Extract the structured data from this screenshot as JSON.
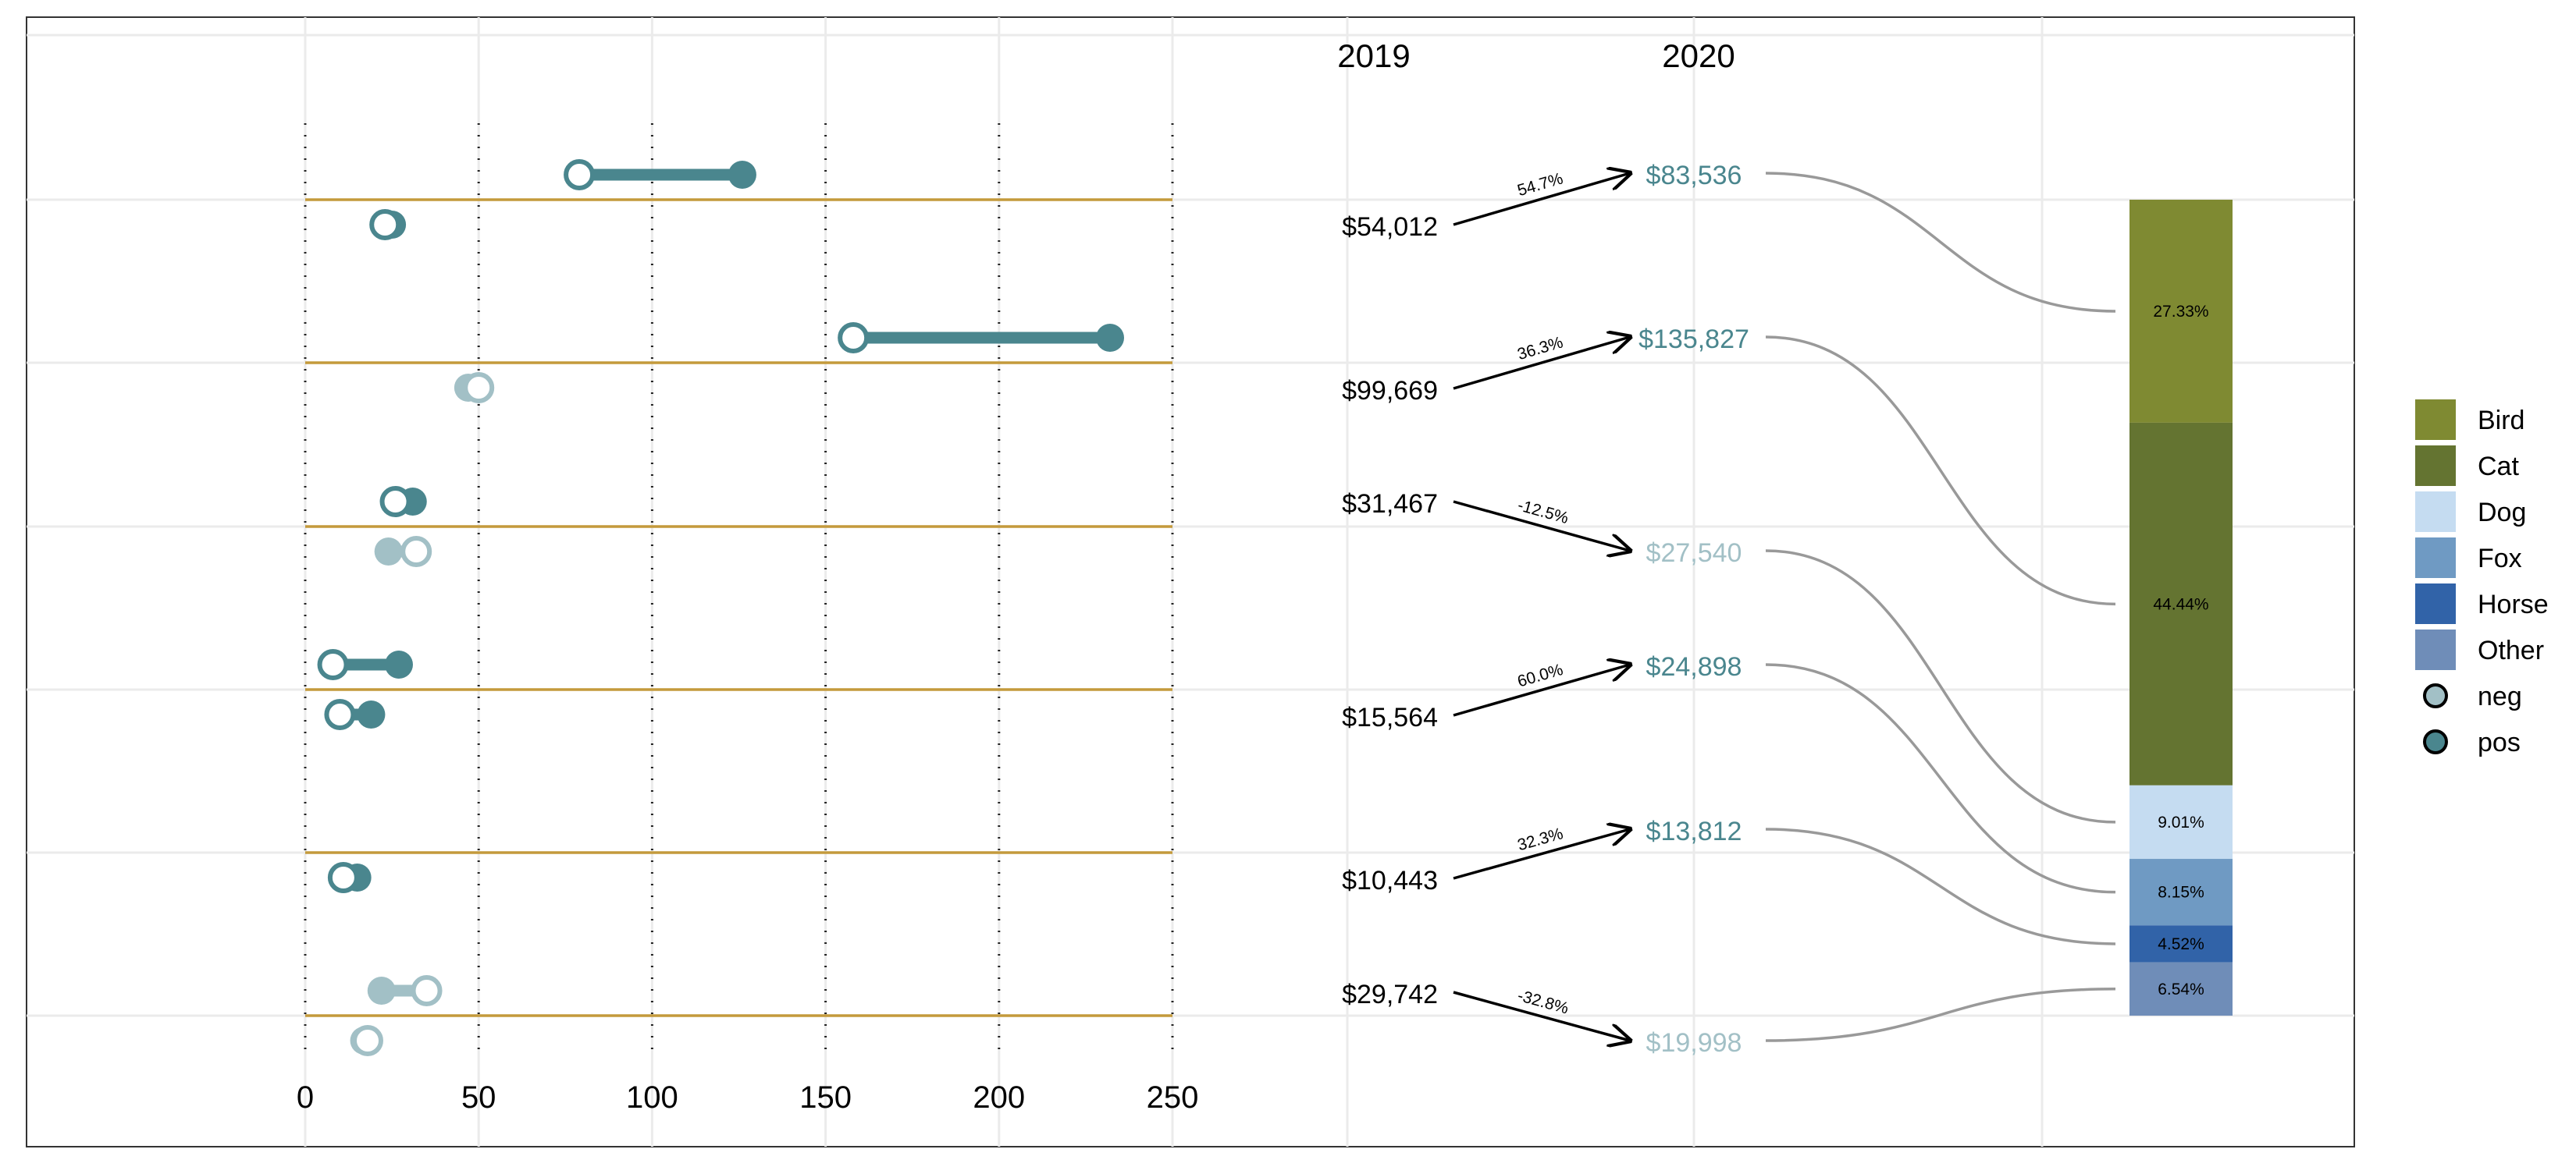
{
  "colors": {
    "pos": "#4A868E",
    "neg": "#A2C0C6",
    "baseline": "#C49A3C",
    "grid": "#EBEBEB",
    "connector": "#999999",
    "arrow": "#000000",
    "bird": "#7F8A32",
    "cat": "#647431",
    "dog": "#C5DCF1",
    "fox": "#6F9AC3",
    "horse": "#3163A8",
    "other": "#6F8DB8"
  },
  "chart_data": {
    "type": "dumbbell",
    "xaxis": {
      "ticks": [
        0,
        50,
        100,
        150,
        200,
        250
      ],
      "range": [
        0,
        250
      ],
      "reference_lines": [
        0,
        50,
        100,
        150,
        200,
        250
      ],
      "reference_style": "dotted"
    },
    "rows": [
      {
        "upper": {
          "from": 79,
          "to": 126,
          "color": "pos",
          "from_fill": "open",
          "to_fill": "filled"
        },
        "lower": {
          "from": 23,
          "to": 25,
          "color": "pos",
          "from_fill": "open",
          "to_fill": "filled"
        },
        "v2019": "$54,012",
        "v2020": "$83,536",
        "change": "54.7%",
        "direction": "up",
        "v2020_color": "pos"
      },
      {
        "upper": {
          "from": 158,
          "to": 232,
          "color": "pos",
          "from_fill": "open",
          "to_fill": "filled"
        },
        "lower": {
          "from": 47,
          "to": 50,
          "color": "neg",
          "from_fill": "filled",
          "to_fill": "open"
        },
        "v2019": "$99,669",
        "v2020": "$135,827",
        "change": "36.3%",
        "direction": "up",
        "v2020_color": "pos"
      },
      {
        "upper": {
          "from": 26,
          "to": 31,
          "color": "pos",
          "from_fill": "open",
          "to_fill": "filled"
        },
        "lower": {
          "from": 24,
          "to": 32,
          "color": "neg",
          "from_fill": "filled",
          "to_fill": "open"
        },
        "v2019": "$31,467",
        "v2020": "$27,540",
        "change": "-12.5%",
        "direction": "down",
        "v2020_color": "neg"
      },
      {
        "upper": {
          "from": 8,
          "to": 27,
          "color": "pos",
          "from_fill": "open",
          "to_fill": "filled"
        },
        "lower": {
          "from": 10,
          "to": 19,
          "color": "pos",
          "from_fill": "open",
          "to_fill": "filled"
        },
        "v2019": "$15,564",
        "v2020": "$24,898",
        "change": "60.0%",
        "direction": "up",
        "v2020_color": "pos"
      },
      {
        "upper": null,
        "lower": {
          "from": 11,
          "to": 15,
          "color": "pos",
          "from_fill": "open",
          "to_fill": "filled"
        },
        "v2019": "$10,443",
        "v2020": "$13,812",
        "change": "32.3%",
        "direction": "up",
        "v2020_color": "pos"
      },
      {
        "upper": {
          "from": 22,
          "to": 35,
          "color": "neg",
          "from_fill": "filled",
          "to_fill": "open"
        },
        "lower": {
          "from": 17,
          "to": 18,
          "color": "neg",
          "from_fill": "filled",
          "to_fill": "open"
        },
        "v2019": "$29,742",
        "v2020": "$19,998",
        "change": "-32.8%",
        "direction": "down",
        "v2020_color": "neg"
      }
    ],
    "years": [
      "2019",
      "2020"
    ],
    "stacked_bar": {
      "segments": [
        {
          "name": "Bird",
          "percent": 27.33,
          "label": "27.33%",
          "color": "bird"
        },
        {
          "name": "Cat",
          "percent": 44.44,
          "label": "44.44%",
          "color": "cat"
        },
        {
          "name": "Dog",
          "percent": 9.01,
          "label": "9.01%",
          "color": "dog"
        },
        {
          "name": "Fox",
          "percent": 8.15,
          "label": "8.15%",
          "color": "fox"
        },
        {
          "name": "Horse",
          "percent": 4.52,
          "label": "4.52%",
          "color": "horse"
        },
        {
          "name": "Other",
          "percent": 6.54,
          "label": "6.54%",
          "color": "other"
        }
      ]
    },
    "legend": {
      "fills": [
        "Bird",
        "Cat",
        "Dog",
        "Fox",
        "Horse",
        "Other"
      ],
      "points": [
        "neg",
        "pos"
      ],
      "placement": "right"
    }
  }
}
